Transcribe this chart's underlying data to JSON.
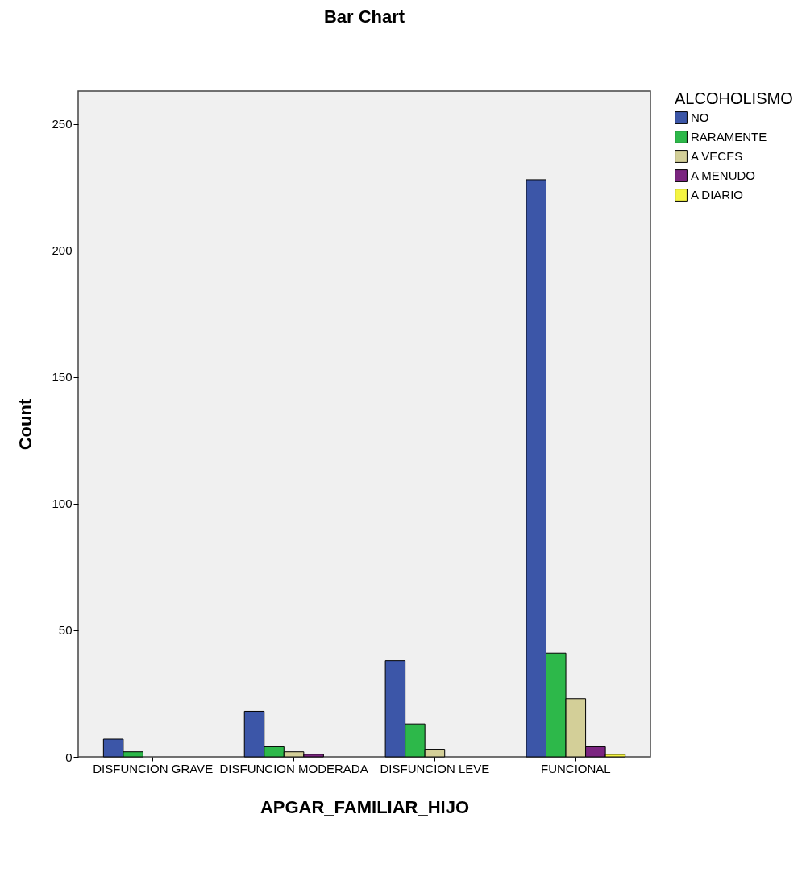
{
  "chart_data": {
    "type": "bar",
    "title": "Bar Chart",
    "xlabel": "APGAR_FAMILIAR_HIJO",
    "ylabel": "Count",
    "legend_title": "ALCOHOLISMO",
    "categories": [
      "DISFUNCION GRAVE",
      "DISFUNCION MODERADA",
      "DISFUNCION LEVE",
      "FUNCIONAL"
    ],
    "series": [
      {
        "name": "NO",
        "color": "#3c56a8",
        "values": [
          7,
          18,
          38,
          228
        ]
      },
      {
        "name": "RARAMENTE",
        "color": "#2db84a",
        "values": [
          2,
          4,
          13,
          41
        ]
      },
      {
        "name": "A VECES",
        "color": "#d3cf98",
        "values": [
          null,
          2,
          3,
          23
        ]
      },
      {
        "name": "A MENUDO",
        "color": "#7b2580",
        "values": [
          null,
          1,
          null,
          4
        ]
      },
      {
        "name": "A DIARIO",
        "color": "#f5f542",
        "values": [
          null,
          null,
          null,
          1
        ]
      }
    ],
    "ylim": [
      0,
      263
    ],
    "yticks": [
      0,
      50,
      100,
      150,
      200,
      250
    ],
    "grid": false,
    "legend": "right"
  }
}
